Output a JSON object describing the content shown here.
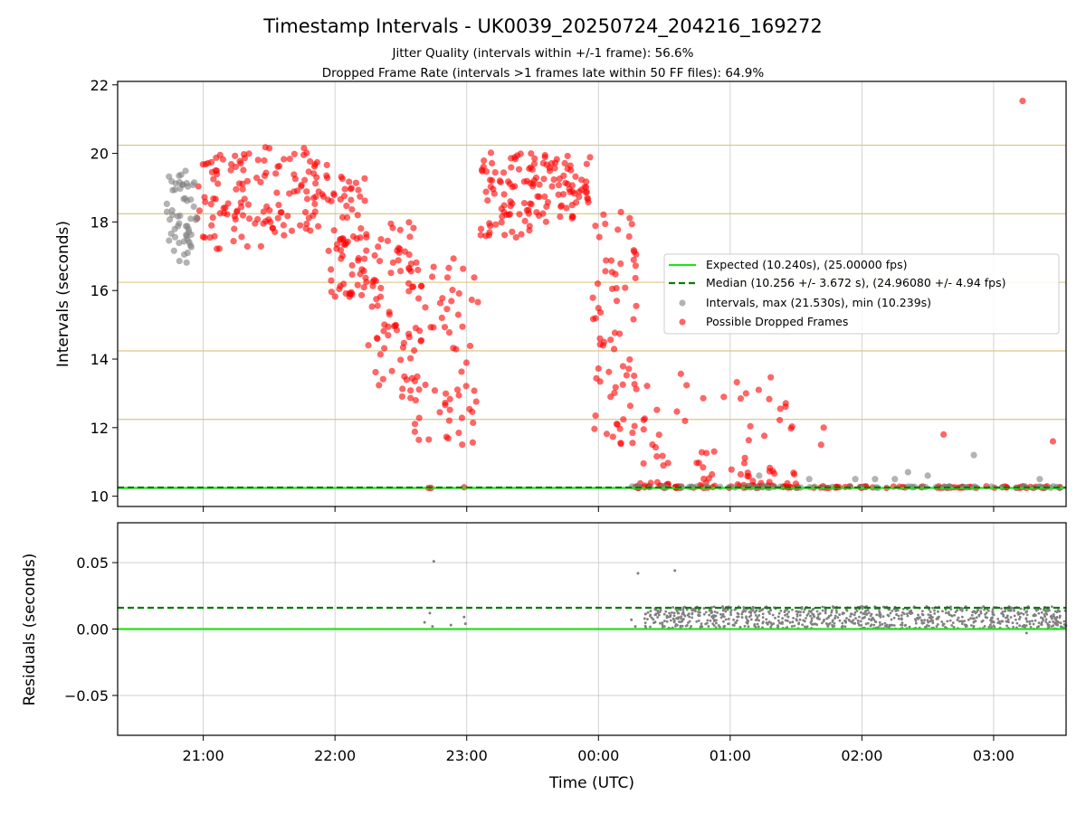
{
  "chart_data": [
    {
      "type": "scatter",
      "title": "Timestamp Intervals - UK0039_20250724_204216_169272",
      "subtitle_lines": [
        "Jitter Quality (intervals within +/-1 frame): 56.6%",
        "Dropped Frame Rate (intervals >1 frames late within 50 FF files): 64.9%"
      ],
      "ylabel": "Intervals (seconds)",
      "ylim": [
        9.7,
        22.1
      ],
      "yticks": [
        10,
        12,
        14,
        16,
        18,
        20,
        22
      ],
      "xlim_hours": [
        20.35,
        27.55
      ],
      "xticks": [
        21,
        22,
        23,
        24,
        25,
        26,
        27
      ],
      "grid": true,
      "horizontal_lines": {
        "frame_lines": [
          10.24,
          12.24,
          14.24,
          16.24,
          18.24,
          20.24,
          22.24
        ],
        "frame_line_color": "#d6c27a"
      },
      "legend_position": "center-right",
      "series": [
        {
          "name": "Expected (10.240s), (25.00000 fps)",
          "kind": "line",
          "value": 10.24,
          "color": "#22e11e"
        },
        {
          "name": "Median (10.256 +/- 3.672 s), (24.96080 +/- 4.94 fps)",
          "kind": "dashed-line",
          "value": 10.256,
          "color": "#0a7a0a"
        },
        {
          "name": "Intervals, max (21.530s), min (10.239s)",
          "kind": "points",
          "color": "#808080"
        },
        {
          "name": "Possible Dropped Frames",
          "kind": "points",
          "color": "#ff0000"
        }
      ],
      "trend_bands": [
        {
          "range": [
            20.72,
            20.95
          ],
          "low": 16.8,
          "high": 19.5,
          "series": "Intervals, max (21.530s), min (10.239s)"
        },
        {
          "range": [
            20.95,
            21.45
          ],
          "low": 17.2,
          "high": 20.0
        },
        {
          "range": [
            21.45,
            21.95
          ],
          "low": 17.6,
          "high": 20.2
        },
        {
          "range": [
            21.95,
            22.25
          ],
          "low": 15.8,
          "high": 19.4
        },
        {
          "range": [
            22.25,
            22.6
          ],
          "low": 12.8,
          "high": 18.0
        },
        {
          "range": [
            22.6,
            23.1
          ],
          "low": 11.5,
          "high": 17.3
        },
        {
          "range": [
            23.1,
            23.5
          ],
          "low": 17.5,
          "high": 20.1
        },
        {
          "range": [
            23.5,
            23.95
          ],
          "low": 18.0,
          "high": 20.0
        },
        {
          "range": [
            23.95,
            24.3
          ],
          "low": 11.5,
          "high": 18.5
        }
      ],
      "sample_points": [
        {
          "x": 22.71,
          "y": 10.24
        },
        {
          "x": 22.73,
          "y": 10.24
        },
        {
          "x": 22.98,
          "y": 10.26
        },
        {
          "x": 24.3,
          "y": 10.24
        },
        {
          "x": 24.5,
          "y": 10.24
        },
        {
          "x": 24.8,
          "y": 10.24
        },
        {
          "x": 25.2,
          "y": 10.24
        },
        {
          "x": 25.5,
          "y": 10.25
        },
        {
          "x": 25.75,
          "y": 10.24
        },
        {
          "x": 25.8,
          "y": 10.25
        },
        {
          "x": 26.65,
          "y": 10.25
        },
        {
          "x": 26.75,
          "y": 10.25
        },
        {
          "x": 27.2,
          "y": 10.24
        },
        {
          "x": 27.25,
          "y": 10.24
        },
        {
          "x": 27.38,
          "y": 10.24
        },
        {
          "x": 27.5,
          "y": 10.25
        },
        {
          "x": 25.38,
          "y": 12.55
        },
        {
          "x": 25.71,
          "y": 12.0
        },
        {
          "x": 25.69,
          "y": 11.5
        },
        {
          "x": 26.62,
          "y": 11.8
        },
        {
          "x": 27.45,
          "y": 11.6
        },
        {
          "x": 27.22,
          "y": 21.53
        },
        {
          "x": 25.08,
          "y": 12.85
        },
        {
          "x": 25.12,
          "y": 13.0
        }
      ],
      "sample_gray_points": [
        {
          "x": 25.22,
          "y": 10.6
        },
        {
          "x": 25.6,
          "y": 10.5
        },
        {
          "x": 25.95,
          "y": 10.5
        },
        {
          "x": 26.1,
          "y": 10.5
        },
        {
          "x": 26.25,
          "y": 10.5
        },
        {
          "x": 26.35,
          "y": 10.7
        },
        {
          "x": 26.5,
          "y": 10.6
        },
        {
          "x": 26.85,
          "y": 11.2
        },
        {
          "x": 27.35,
          "y": 10.5
        }
      ]
    },
    {
      "type": "scatter",
      "ylabel": "Residuals (seconds)",
      "xlabel": "Time (UTC)",
      "ylim": [
        -0.08,
        0.08
      ],
      "yticks": [
        -0.05,
        0.0,
        0.05
      ],
      "ytick_labels": [
        "−0.05",
        "0.00",
        "0.05"
      ],
      "xlim_hours": [
        20.35,
        27.55
      ],
      "xticks": [
        21,
        22,
        23,
        24,
        25,
        26,
        27
      ],
      "xtick_labels": [
        "21:00",
        "22:00",
        "23:00",
        "00:00",
        "01:00",
        "02:00",
        "03:00"
      ],
      "grid": true,
      "expected_line": 0.0,
      "median_line": 0.016,
      "point_color": "#808080",
      "dense_band": {
        "range": [
          24.35,
          27.55
        ],
        "low": 0.0,
        "high": 0.017
      },
      "sample_points": [
        {
          "x": 22.75,
          "y": 0.051
        },
        {
          "x": 24.3,
          "y": 0.042
        },
        {
          "x": 24.58,
          "y": 0.044
        },
        {
          "x": 22.68,
          "y": 0.005
        },
        {
          "x": 22.72,
          "y": 0.012
        },
        {
          "x": 22.74,
          "y": 0.002
        },
        {
          "x": 22.88,
          "y": 0.003
        },
        {
          "x": 22.98,
          "y": 0.009
        },
        {
          "x": 22.99,
          "y": 0.004
        },
        {
          "x": 24.25,
          "y": 0.007
        },
        {
          "x": 24.28,
          "y": 0.002
        },
        {
          "x": 27.25,
          "y": -0.003
        }
      ]
    }
  ],
  "legend": {
    "entries": [
      "Expected (10.240s), (25.00000 fps)",
      "Median (10.256 +/- 3.672 s), (24.96080 +/- 4.94 fps)",
      "Intervals, max (21.530s), min (10.239s)",
      "Possible Dropped Frames"
    ]
  }
}
